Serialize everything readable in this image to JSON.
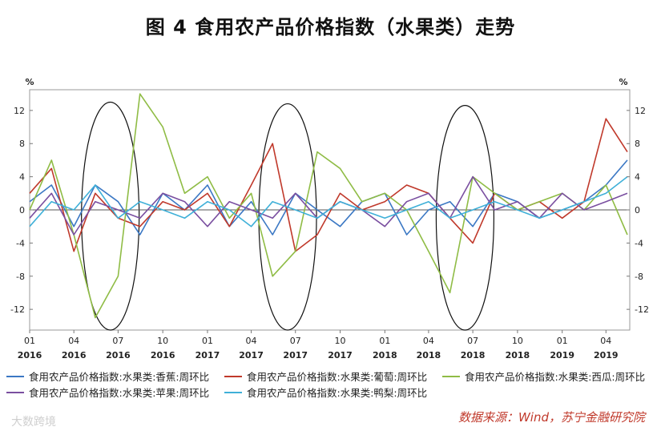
{
  "title": "图 4   食用农产品价格指数（水果类）走势",
  "source": "数据来源：Wind，苏宁金融研究院",
  "watermark": "大数跨境",
  "chart_data": {
    "type": "line",
    "unit_left": "%",
    "unit_right": "%",
    "ylim": [
      -14.5,
      14.5
    ],
    "yticks": [
      12,
      8,
      4,
      0,
      -4,
      -8,
      -12
    ],
    "xlim": [
      "2016-01-01",
      "2019-05-20"
    ],
    "xticks": [
      {
        "month": "01",
        "year": "2016",
        "date": "2016-01-01"
      },
      {
        "month": "04",
        "year": "2016",
        "date": "2016-04-01"
      },
      {
        "month": "07",
        "year": "2016",
        "date": "2016-07-01"
      },
      {
        "month": "10",
        "year": "2016",
        "date": "2016-10-01"
      },
      {
        "month": "01",
        "year": "2017",
        "date": "2017-01-01"
      },
      {
        "month": "04",
        "year": "2017",
        "date": "2017-04-01"
      },
      {
        "month": "07",
        "year": "2017",
        "date": "2017-07-01"
      },
      {
        "month": "10",
        "year": "2017",
        "date": "2017-10-01"
      },
      {
        "month": "01",
        "year": "2018",
        "date": "2018-01-01"
      },
      {
        "month": "04",
        "year": "2018",
        "date": "2018-04-01"
      },
      {
        "month": "07",
        "year": "2018",
        "date": "2018-07-01"
      },
      {
        "month": "10",
        "year": "2018",
        "date": "2018-10-01"
      },
      {
        "month": "01",
        "year": "2019",
        "date": "2019-01-01"
      },
      {
        "month": "04",
        "year": "2019",
        "date": "2019-04-01"
      }
    ],
    "highlight_ellipses": [
      {
        "center": "2016-06-15",
        "y_range": [
          -14.5,
          13
        ]
      },
      {
        "center": "2017-06-15",
        "y_range": [
          -14.5,
          12.8
        ]
      },
      {
        "center": "2018-06-15",
        "y_range": [
          -14.5,
          12.6
        ]
      }
    ],
    "series": [
      {
        "name": "食用农产品价格指数:水果类:香蕉:周环比",
        "color": "#3b78c4",
        "x": [
          "2016-01-01",
          "2016-02-15",
          "2016-04-01",
          "2016-05-15",
          "2016-07-01",
          "2016-08-15",
          "2016-10-01",
          "2016-11-15",
          "2017-01-01",
          "2017-02-15",
          "2017-04-01",
          "2017-05-15",
          "2017-07-01",
          "2017-08-15",
          "2017-10-01",
          "2017-11-15",
          "2018-01-01",
          "2018-02-15",
          "2018-04-01",
          "2018-05-15",
          "2018-07-01",
          "2018-08-15",
          "2018-10-01",
          "2018-11-15",
          "2019-01-01",
          "2019-02-15",
          "2019-04-01",
          "2019-05-15"
        ],
        "y": [
          1,
          3,
          -2,
          3,
          1,
          -3,
          2,
          0,
          3,
          -2,
          1,
          -3,
          2,
          0,
          -2,
          1,
          2,
          -3,
          0,
          1,
          -2,
          2,
          1,
          -1,
          0,
          1,
          3,
          6
        ]
      },
      {
        "name": "食用农产品价格指数:水果类:葡萄:周环比",
        "color": "#c0392b",
        "x": [
          "2016-01-01",
          "2016-02-15",
          "2016-04-01",
          "2016-05-15",
          "2016-07-01",
          "2016-08-15",
          "2016-10-01",
          "2016-11-15",
          "2017-01-01",
          "2017-02-15",
          "2017-04-01",
          "2017-05-15",
          "2017-07-01",
          "2017-08-15",
          "2017-10-01",
          "2017-11-15",
          "2018-01-01",
          "2018-02-15",
          "2018-04-01",
          "2018-05-15",
          "2018-07-01",
          "2018-08-15",
          "2018-10-01",
          "2018-11-15",
          "2019-01-01",
          "2019-02-15",
          "2019-04-01",
          "2019-05-15"
        ],
        "y": [
          2,
          5,
          -5,
          2,
          -1,
          -2,
          1,
          0,
          2,
          -2,
          3,
          8,
          -5,
          -3,
          2,
          0,
          1,
          3,
          2,
          -1,
          -4,
          2,
          0,
          1,
          -1,
          1,
          11,
          7
        ]
      },
      {
        "name": "食用农产品价格指数:水果类:西瓜:周环比",
        "color": "#8fbc45",
        "x": [
          "2016-01-01",
          "2016-02-15",
          "2016-04-01",
          "2016-05-15",
          "2016-07-01",
          "2016-08-15",
          "2016-10-01",
          "2016-11-15",
          "2017-01-01",
          "2017-02-15",
          "2017-04-01",
          "2017-05-15",
          "2017-07-01",
          "2017-08-15",
          "2017-10-01",
          "2017-11-15",
          "2018-01-01",
          "2018-02-15",
          "2018-04-01",
          "2018-05-15",
          "2018-07-01",
          "2018-08-15",
          "2018-10-01",
          "2018-11-15",
          "2019-01-01",
          "2019-02-15",
          "2019-04-01",
          "2019-05-15"
        ],
        "y": [
          0,
          6,
          -3,
          -13,
          -8,
          14,
          10,
          2,
          4,
          -1,
          2,
          -8,
          -5,
          7,
          5,
          1,
          2,
          0,
          -5,
          -10,
          4,
          2,
          0,
          1,
          2,
          0,
          3,
          -3
        ]
      },
      {
        "name": "食用农产品价格指数:水果类:苹果:周环比",
        "color": "#7a4fa0",
        "x": [
          "2016-01-01",
          "2016-02-15",
          "2016-04-01",
          "2016-05-15",
          "2016-07-01",
          "2016-08-15",
          "2016-10-01",
          "2016-11-15",
          "2017-01-01",
          "2017-02-15",
          "2017-04-01",
          "2017-05-15",
          "2017-07-01",
          "2017-08-15",
          "2017-10-01",
          "2017-11-15",
          "2018-01-01",
          "2018-02-15",
          "2018-04-01",
          "2018-05-15",
          "2018-07-01",
          "2018-08-15",
          "2018-10-01",
          "2018-11-15",
          "2019-01-01",
          "2019-02-15",
          "2019-04-01",
          "2019-05-15"
        ],
        "y": [
          -1,
          2,
          -3,
          1,
          0,
          -1,
          2,
          1,
          -2,
          1,
          0,
          -1,
          2,
          -1,
          1,
          0,
          -2,
          1,
          2,
          -1,
          4,
          0,
          1,
          -1,
          2,
          0,
          1,
          2
        ]
      },
      {
        "name": "食用农产品价格指数:水果类:鸭梨:周环比",
        "color": "#3fb0d8",
        "x": [
          "2016-01-01",
          "2016-02-15",
          "2016-04-01",
          "2016-05-15",
          "2016-07-01",
          "2016-08-15",
          "2016-10-01",
          "2016-11-15",
          "2017-01-01",
          "2017-02-15",
          "2017-04-01",
          "2017-05-15",
          "2017-07-01",
          "2017-08-15",
          "2017-10-01",
          "2017-11-15",
          "2018-01-01",
          "2018-02-15",
          "2018-04-01",
          "2018-05-15",
          "2018-07-01",
          "2018-08-15",
          "2018-10-01",
          "2018-11-15",
          "2019-01-01",
          "2019-02-15",
          "2019-04-01",
          "2019-05-15"
        ],
        "y": [
          -2,
          1,
          0,
          3,
          -1,
          1,
          0,
          -1,
          1,
          0,
          -2,
          1,
          0,
          -1,
          1,
          0,
          -1,
          0,
          1,
          -1,
          0,
          1,
          0,
          -1,
          0,
          1,
          2,
          4
        ]
      }
    ]
  }
}
